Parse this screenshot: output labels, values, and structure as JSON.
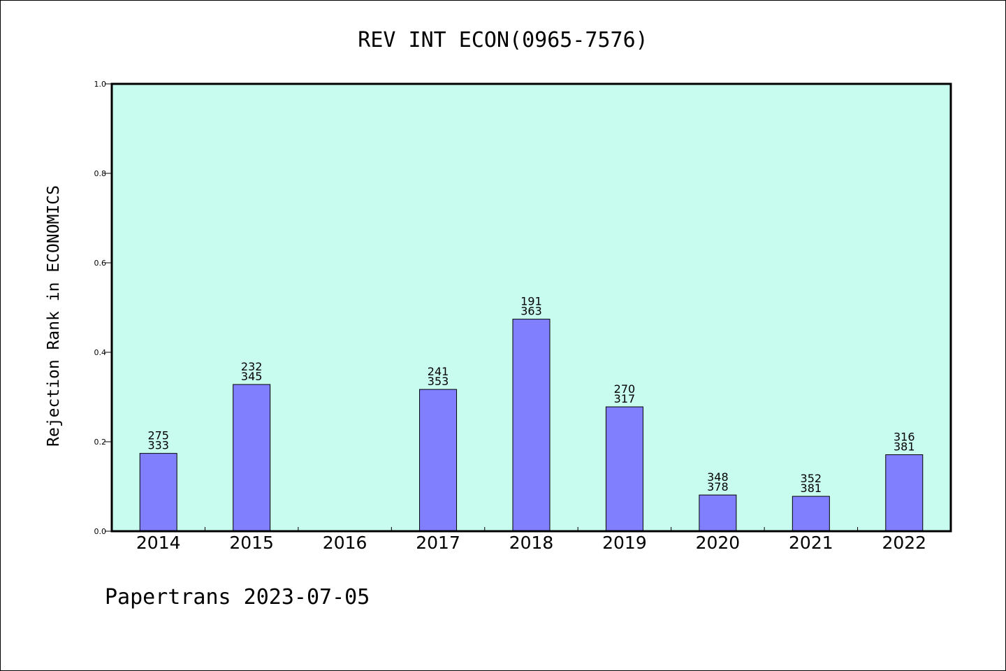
{
  "chart_data": {
    "type": "bar",
    "title": "REV INT ECON(0965-7576)",
    "ylabel": "Rejection Rank in ECONOMICS",
    "xlabel": "",
    "categories": [
      "2014",
      "2015",
      "2016",
      "2017",
      "2018",
      "2019",
      "2020",
      "2021",
      "2022"
    ],
    "values": [
      0.174,
      0.328,
      null,
      0.317,
      0.474,
      0.278,
      0.081,
      0.078,
      0.171
    ],
    "bar_labels": [
      [
        "275",
        "333"
      ],
      [
        "232",
        "345"
      ],
      null,
      [
        "241",
        "353"
      ],
      [
        "191",
        "363"
      ],
      [
        "270",
        "317"
      ],
      [
        "348",
        "378"
      ],
      [
        "352",
        "381"
      ],
      [
        "316",
        "381"
      ]
    ],
    "ylim": [
      0,
      1
    ],
    "yticks": [
      "0.0",
      "0.2",
      "0.4",
      "0.6",
      "0.8",
      "1.0"
    ],
    "grid": false,
    "legend": "none",
    "colors": {
      "plot_background": "#c8fcee",
      "bar_fill": "#8080ff",
      "bar_stroke": "#000000",
      "axis": "#000000"
    }
  },
  "footer": "Papertrans 2023-07-05"
}
